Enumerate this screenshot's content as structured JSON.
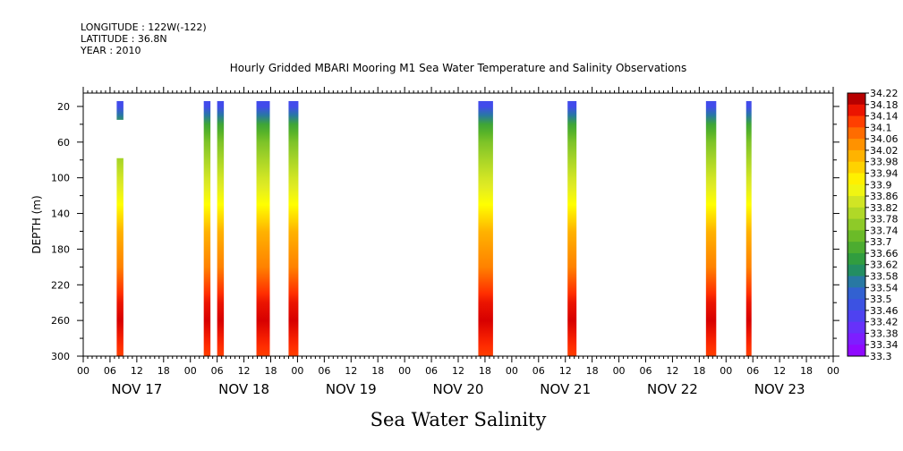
{
  "meta": {
    "longitude": "LONGITUDE : 122W(-122)",
    "latitude": "LATITUDE : 36.8N",
    "year": "YEAR : 2010"
  },
  "chart_data": {
    "type": "heatmap",
    "title": "Hourly Gridded MBARI Mooring M1 Sea Water Temperature and Salinity Observations",
    "xlabel": "Sea Water Salinity",
    "ylabel": "DEPTH (m)",
    "hour_ticks": [
      "00",
      "06",
      "12",
      "18",
      "00",
      "06",
      "12",
      "18",
      "00",
      "06",
      "12",
      "18",
      "00",
      "06",
      "12",
      "18",
      "00",
      "06",
      "12",
      "18",
      "00",
      "06",
      "12",
      "18",
      "00",
      "06",
      "12",
      "18",
      "00"
    ],
    "day_labels": [
      "NOV 17",
      "NOV 18",
      "NOV 19",
      "NOV 20",
      "NOV 21",
      "NOV 22",
      "NOV 23"
    ],
    "y_ticks": [
      20,
      60,
      100,
      140,
      180,
      220,
      260,
      300
    ],
    "ylim": [
      300,
      5
    ],
    "xlim_hours": [
      0,
      168
    ],
    "depth_profile": [
      {
        "depth": 20,
        "value": 33.46
      },
      {
        "depth": 40,
        "value": 33.66
      },
      {
        "depth": 60,
        "value": 33.74
      },
      {
        "depth": 100,
        "value": 33.84
      },
      {
        "depth": 130,
        "value": 33.9
      },
      {
        "depth": 160,
        "value": 34.0
      },
      {
        "depth": 200,
        "value": 34.06
      },
      {
        "depth": 240,
        "value": 34.16
      },
      {
        "depth": 260,
        "value": 34.18
      },
      {
        "depth": 300,
        "value": 34.12
      }
    ],
    "observation_columns": [
      {
        "start_hour": 7.5,
        "end_hour": 9.0,
        "gap_depths": [
          35,
          78
        ]
      },
      {
        "start_hour": 27.0,
        "end_hour": 28.5
      },
      {
        "start_hour": 30.0,
        "end_hour": 31.5
      },
      {
        "start_hour": 38.8,
        "end_hour": 41.8
      },
      {
        "start_hour": 46.0,
        "end_hour": 48.2
      },
      {
        "start_hour": 88.5,
        "end_hour": 91.8
      },
      {
        "start_hour": 108.5,
        "end_hour": 110.5
      },
      {
        "start_hour": 139.5,
        "end_hour": 141.8
      },
      {
        "start_hour": 148.5,
        "end_hour": 149.7
      }
    ],
    "colorbar": {
      "labels": [
        "34.22",
        "34.18",
        "34.14",
        "34.1",
        "34.06",
        "34.02",
        "33.98",
        "33.94",
        "33.9",
        "33.86",
        "33.82",
        "33.78",
        "33.74",
        "33.7",
        "33.66",
        "33.62",
        "33.58",
        "33.54",
        "33.5",
        "33.46",
        "33.42",
        "33.38",
        "33.34",
        "33.3"
      ],
      "range": [
        33.3,
        34.22
      ]
    }
  }
}
